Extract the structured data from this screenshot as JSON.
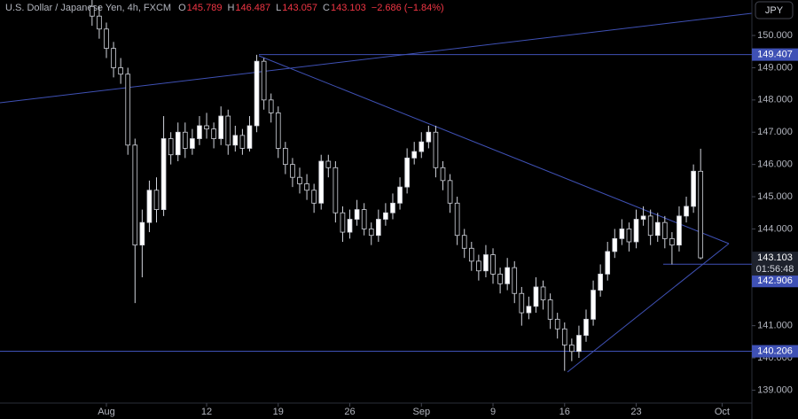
{
  "header": {
    "symbol": "U.S. Dollar / Japanese Yen, 4h, FXCM",
    "ohlc": [
      {
        "key": "O",
        "value": 145.789
      },
      {
        "key": "H",
        "value": 146.487
      },
      {
        "key": "L",
        "value": 143.057
      },
      {
        "key": "C",
        "value": 143.103
      }
    ],
    "change": "−2.686 (−1.84%)"
  },
  "currency_button": "JPY",
  "chart_data": {
    "type": "candlestick",
    "x": [
      -1,
      -0.5,
      0,
      0.5,
      1,
      1.5,
      2,
      2.5,
      3,
      3.5,
      4,
      4.5,
      5,
      5.5,
      6,
      6.5,
      7,
      7.5,
      8,
      8.5,
      9,
      9.5,
      10,
      10.5,
      11,
      11.5,
      12,
      12.5,
      13,
      13.5,
      14,
      14.5,
      15,
      15.5,
      16,
      16.5,
      17,
      17.5,
      18,
      18.5,
      19,
      19.5,
      20,
      20.5,
      21,
      21.5,
      22,
      22.5,
      23,
      23.5,
      24,
      24.5,
      25,
      25.5,
      26,
      26.5,
      27,
      27.5,
      28,
      28.5,
      29,
      29.5,
      30,
      30.5,
      31,
      31.5,
      32,
      32.5,
      33,
      33.5,
      34,
      34.5,
      35,
      35.5,
      36,
      36.5,
      37,
      37.5,
      38,
      38.5,
      39,
      39.5,
      40,
      40.5,
      41,
      41.5
    ],
    "open": [
      150.9,
      150.6,
      150.2,
      149.6,
      149.0,
      148.8,
      146.6,
      143.5,
      144.2,
      145.2,
      144.6,
      146.8,
      146.3,
      147.0,
      146.5,
      146.8,
      147.2,
      147.1,
      146.8,
      147.5,
      146.6,
      146.9,
      146.5,
      147.2,
      149.2,
      148.0,
      147.6,
      146.5,
      146.0,
      145.6,
      145.4,
      145.2,
      144.8,
      146.1,
      145.9,
      144.5,
      143.9,
      144.3,
      144.6,
      144.0,
      143.8,
      144.3,
      144.5,
      144.8,
      145.3,
      146.2,
      146.4,
      146.7,
      147.0,
      145.9,
      145.5,
      144.8,
      143.8,
      143.4,
      143.0,
      142.7,
      143.2,
      142.6,
      142.3,
      142.8,
      142.0,
      141.4,
      141.6,
      142.2,
      141.8,
      141.2,
      140.9,
      140.4,
      140.2,
      140.7,
      141.2,
      142.1,
      142.6,
      143.3,
      143.7,
      144.0,
      143.6,
      144.3,
      144.4,
      143.8,
      144.2,
      143.7,
      143.5,
      144.4,
      144.7,
      145.789
    ],
    "high": [
      151.2,
      150.9,
      150.4,
      149.8,
      149.3,
      149.0,
      146.8,
      144.6,
      145.5,
      145.6,
      147.5,
      147.0,
      147.3,
      147.3,
      147.1,
      147.5,
      147.6,
      147.3,
      147.8,
      147.7,
      147.2,
      147.1,
      147.5,
      149.4,
      149.3,
      148.2,
      147.8,
      146.7,
      146.2,
      145.9,
      145.7,
      145.4,
      146.3,
      146.3,
      146.1,
      144.7,
      144.6,
      144.9,
      144.8,
      144.2,
      144.6,
      144.8,
      145.1,
      145.6,
      146.5,
      146.7,
      147.0,
      147.2,
      147.2,
      146.1,
      145.7,
      145.0,
      144.0,
      143.6,
      143.2,
      143.5,
      143.4,
      142.8,
      143.1,
      143.0,
      142.2,
      141.9,
      142.5,
      142.4,
      142.0,
      141.4,
      141.1,
      140.6,
      141.0,
      141.5,
      142.4,
      142.9,
      143.6,
      144.0,
      144.3,
      144.2,
      144.6,
      144.7,
      144.6,
      144.5,
      144.4,
      143.9,
      144.7,
      145.0,
      146.0,
      146.487
    ],
    "low": [
      150.3,
      149.9,
      149.3,
      148.7,
      148.5,
      146.3,
      141.7,
      142.5,
      143.9,
      144.2,
      144.4,
      146.0,
      146.1,
      146.2,
      146.3,
      146.6,
      146.8,
      146.5,
      146.6,
      146.3,
      146.4,
      146.3,
      146.4,
      147.0,
      147.7,
      147.3,
      146.2,
      145.7,
      145.3,
      145.1,
      144.9,
      144.5,
      144.6,
      145.6,
      144.2,
      143.6,
      143.7,
      144.1,
      143.8,
      143.5,
      143.6,
      144.1,
      144.3,
      144.6,
      145.1,
      146.0,
      146.2,
      146.5,
      145.6,
      145.2,
      144.5,
      143.5,
      143.1,
      142.7,
      142.4,
      142.5,
      142.3,
      142.0,
      142.1,
      141.7,
      141.0,
      141.2,
      141.4,
      141.5,
      140.9,
      140.6,
      139.6,
      139.9,
      140.0,
      140.5,
      141.0,
      141.9,
      142.4,
      143.1,
      143.5,
      143.3,
      143.4,
      144.1,
      143.5,
      143.6,
      143.4,
      142.9,
      143.3,
      144.2,
      144.5,
      143.057
    ],
    "close": [
      150.6,
      150.2,
      149.6,
      149.0,
      148.8,
      146.6,
      143.5,
      144.2,
      145.2,
      144.6,
      146.8,
      146.3,
      147.0,
      146.5,
      146.8,
      147.2,
      147.1,
      146.8,
      147.5,
      146.6,
      146.9,
      146.5,
      147.2,
      149.2,
      148.0,
      147.6,
      146.5,
      146.0,
      145.6,
      145.4,
      145.2,
      144.8,
      146.1,
      145.9,
      144.5,
      143.9,
      144.3,
      144.6,
      144.0,
      143.8,
      144.3,
      144.5,
      144.8,
      145.3,
      146.2,
      146.4,
      146.7,
      147.0,
      145.9,
      145.5,
      144.8,
      143.8,
      143.4,
      143.0,
      142.7,
      143.2,
      142.6,
      142.3,
      142.8,
      142.0,
      141.4,
      141.6,
      142.2,
      141.8,
      141.2,
      140.9,
      140.4,
      140.2,
      140.7,
      141.2,
      142.1,
      142.6,
      143.3,
      143.7,
      144.0,
      143.6,
      144.3,
      144.4,
      143.8,
      144.2,
      143.7,
      143.5,
      144.4,
      144.7,
      145.79,
      143.103
    ],
    "up_color": "#ffffff",
    "down_color": "#000000",
    "wick_color": "#d1d4dc",
    "xlim": [
      -7.43,
      45.08
    ],
    "ylim": [
      138.6,
      151.1
    ],
    "xticks": [
      {
        "value": 0,
        "label": "Aug"
      },
      {
        "value": 7,
        "label": "12"
      },
      {
        "value": 12,
        "label": "19"
      },
      {
        "value": 17,
        "label": "26"
      },
      {
        "value": 22,
        "label": "Sep"
      },
      {
        "value": 27,
        "label": "9"
      },
      {
        "value": 32,
        "label": "16"
      },
      {
        "value": 37,
        "label": "23"
      },
      {
        "value": 43,
        "label": "Oct"
      }
    ],
    "yticks": [
      {
        "value": 150,
        "label": "150.000"
      },
      {
        "value": 149,
        "label": "149.000"
      },
      {
        "value": 148,
        "label": "148.000"
      },
      {
        "value": 147,
        "label": "147.000"
      },
      {
        "value": 146,
        "label": "146.000"
      },
      {
        "value": 145,
        "label": "145.000"
      },
      {
        "value": 144,
        "label": "144.000"
      },
      {
        "value": 141,
        "label": "141.000"
      },
      {
        "value": 140,
        "label": "140.000"
      },
      {
        "value": 139,
        "label": "139.000"
      }
    ],
    "price_lines": [
      149.407,
      142.906,
      140.206
    ],
    "price_line_color": "#3f51b5",
    "last_price": 143.103,
    "countdown": "01:56:48"
  }
}
